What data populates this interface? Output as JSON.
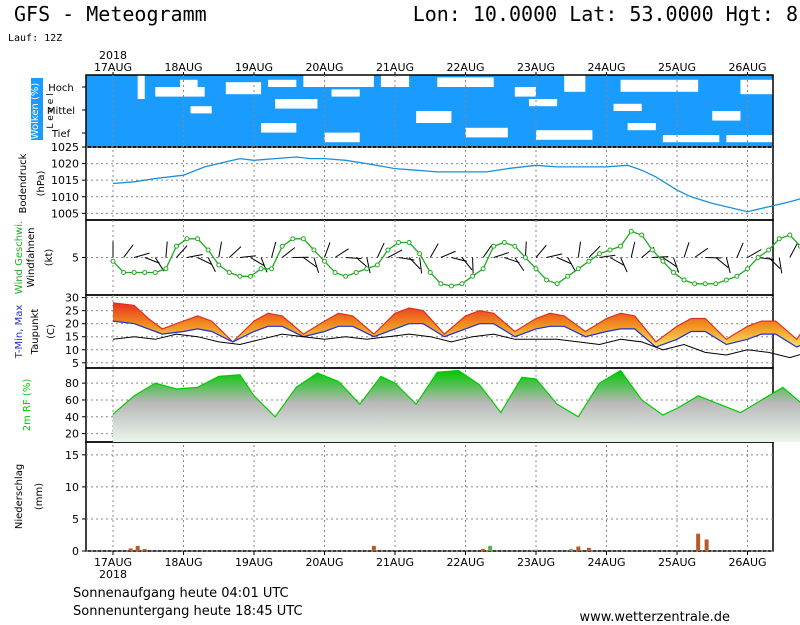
{
  "header": {
    "title": "GFS - Meteogramm",
    "coords": "Lon: 10.0000 Lat: 53.0000 Hgt: 8",
    "run": "Lauf: 12Z"
  },
  "footer": {
    "sunrise": "Sonnenaufgang heute 04:01 UTC",
    "sunset": "Sonnenuntergang heute 18:45 UTC",
    "site": "www.wetterzentrale.de"
  },
  "colors": {
    "cloud_bg": "#1a9cff",
    "pressure": "#1a8fdc",
    "wind": "#22aa22",
    "tmax": "#e03020",
    "tmin": "#2030d0",
    "rh": "#00cc00",
    "precip_rain": "#b85a28",
    "precip_other": "#6aa84f"
  },
  "chart_data": {
    "type": "line",
    "year": "2018",
    "dates": [
      "17AUG",
      "18AUG",
      "19AUG",
      "20AUG",
      "21AUG",
      "22AUG",
      "23AUG",
      "24AUG",
      "25AUG",
      "26AUG"
    ],
    "panels": [
      {
        "id": "clouds",
        "ylabel": "Wolken (%)",
        "ylabel2": "L e v e l",
        "levels": [
          "Hoch",
          "Mittel",
          "Tief"
        ],
        "note": "white patches = no cloud; blue = cloud cover"
      },
      {
        "id": "pressure",
        "ylabel": "Bodendruck",
        "ylabel2": "(hPa)",
        "yticks": [
          1005,
          1010,
          1015,
          1020,
          1025
        ],
        "ylim": [
          1003,
          1025
        ],
        "series": [
          {
            "name": "Bodendruck",
            "x": [
              0,
              0.3,
              0.6,
              1.0,
              1.3,
              1.6,
              1.8,
              2.0,
              2.3,
              2.6,
              2.8,
              3.0,
              3.3,
              3.6,
              4.0,
              4.3,
              4.6,
              5.0,
              5.3,
              5.6,
              6.0,
              6.3,
              6.6,
              7.0,
              7.3,
              7.5,
              7.7,
              8.0,
              8.2,
              8.5,
              8.8,
              9.0,
              9.3,
              9.6,
              9.85
            ],
            "y": [
              1014,
              1014.5,
              1015.5,
              1016.5,
              1019,
              1020.5,
              1021.5,
              1021,
              1021.5,
              1022,
              1021.5,
              1021.5,
              1021,
              1020,
              1018.5,
              1018,
              1017.5,
              1017.5,
              1017.5,
              1018.5,
              1019.5,
              1019,
              1019,
              1019,
              1019.5,
              1018,
              1016,
              1012,
              1010,
              1008,
              1006.5,
              1005.5,
              1007,
              1008.5,
              1010
            ]
          }
        ]
      },
      {
        "id": "wind",
        "ylabel": "Wind Geschwi.",
        "ylabel2": "Windfahnen",
        "ylabel3": "(kt)",
        "yticks": [
          5
        ],
        "ylim": [
          0,
          10
        ],
        "series": [
          {
            "name": "Wind",
            "x": [
              0,
              0.15,
              0.3,
              0.45,
              0.6,
              0.75,
              0.9,
              1.05,
              1.2,
              1.35,
              1.5,
              1.65,
              1.8,
              1.95,
              2.1,
              2.25,
              2.4,
              2.55,
              2.7,
              2.85,
              3.0,
              3.15,
              3.3,
              3.45,
              3.6,
              3.75,
              3.9,
              4.05,
              4.2,
              4.35,
              4.5,
              4.65,
              4.8,
              4.95,
              5.1,
              5.25,
              5.4,
              5.55,
              5.7,
              5.85,
              6.0,
              6.15,
              6.3,
              6.45,
              6.6,
              6.75,
              6.9,
              7.05,
              7.2,
              7.35,
              7.5,
              7.65,
              7.8,
              7.95,
              8.1,
              8.25,
              8.4,
              8.55,
              8.7,
              8.85,
              9.0,
              9.15,
              9.3,
              9.45,
              9.6,
              9.75,
              9.85
            ],
            "y": [
              4.5,
              3,
              3,
              3,
              3,
              3.5,
              6.5,
              7.5,
              7.5,
              6,
              4,
              3,
              2.5,
              2.5,
              3.5,
              3.5,
              6.5,
              7.5,
              7.5,
              6,
              4.5,
              3,
              2.5,
              3,
              3.5,
              4,
              6,
              7,
              7,
              5.5,
              3,
              1.5,
              1.2,
              1.5,
              2.5,
              3.5,
              6.5,
              7,
              6.5,
              5,
              3.5,
              2,
              1.5,
              2.5,
              3.5,
              4.5,
              5.5,
              6,
              6.5,
              8.5,
              8,
              6,
              4.5,
              3,
              2,
              1.5,
              1.5,
              1.5,
              2,
              2.5,
              3.5,
              5,
              6,
              7.5,
              8,
              6.5,
              4.5
            ]
          }
        ]
      },
      {
        "id": "temperature",
        "ylabel": "T-Min, Max",
        "ylabel2": "Taupunkt",
        "ylabel3": "(C)",
        "yticks": [
          5,
          10,
          15,
          20,
          25,
          30
        ],
        "ylim": [
          3,
          31
        ],
        "series": [
          {
            "name": "T-Max",
            "x": [
              0,
              0.3,
              0.5,
              0.7,
              1.0,
              1.2,
              1.4,
              1.7,
              2.0,
              2.2,
              2.4,
              2.7,
              3.0,
              3.2,
              3.4,
              3.7,
              4.0,
              4.2,
              4.4,
              4.7,
              5.0,
              5.2,
              5.4,
              5.7,
              6.0,
              6.2,
              6.4,
              6.7,
              7.0,
              7.2,
              7.4,
              7.7,
              8.0,
              8.2,
              8.4,
              8.7,
              9.0,
              9.2,
              9.4,
              9.7,
              9.85
            ],
            "y": [
              28,
              27,
              22,
              18,
              21,
              23,
              21,
              13,
              21,
              24,
              23,
              16,
              21,
              24,
              23,
              16,
              24,
              26,
              25,
              16,
              23,
              25,
              24,
              17,
              22,
              24,
              23,
              17,
              22,
              24,
              23,
              13,
              19,
              22,
              22,
              14,
              19,
              21,
              21,
              14,
              20
            ]
          },
          {
            "name": "T-Min",
            "x": [
              0,
              0.3,
              0.5,
              0.7,
              1.0,
              1.2,
              1.4,
              1.7,
              2.0,
              2.2,
              2.4,
              2.7,
              3.0,
              3.2,
              3.4,
              3.7,
              4.0,
              4.2,
              4.4,
              4.7,
              5.0,
              5.2,
              5.4,
              5.7,
              6.0,
              6.2,
              6.4,
              6.7,
              7.0,
              7.2,
              7.4,
              7.7,
              8.0,
              8.2,
              8.4,
              8.7,
              9.0,
              9.2,
              9.4,
              9.7,
              9.85
            ],
            "y": [
              21,
              20,
              18,
              16,
              17,
              18,
              17,
              13,
              17,
              19,
              19,
              15,
              17,
              19,
              19,
              15,
              18,
              20,
              20,
              15,
              18,
              20,
              20,
              15,
              18,
              19,
              19,
              15,
              17,
              18,
              18,
              11,
              14,
              17,
              17,
              12,
              14,
              16,
              16,
              11,
              13
            ]
          },
          {
            "name": "Taupunkt",
            "x": [
              0,
              0.3,
              0.6,
              0.9,
              1.2,
              1.5,
              1.8,
              2.1,
              2.4,
              2.7,
              3.0,
              3.3,
              3.6,
              3.9,
              4.2,
              4.5,
              4.8,
              5.1,
              5.4,
              5.7,
              6.0,
              6.3,
              6.6,
              6.9,
              7.2,
              7.5,
              7.8,
              8.1,
              8.4,
              8.7,
              9.0,
              9.3,
              9.6,
              9.85
            ],
            "y": [
              14,
              15,
              14,
              16,
              15,
              13,
              12,
              14,
              16,
              15,
              14,
              15,
              14,
              15,
              16,
              15,
              13,
              15,
              16,
              14,
              14,
              14,
              13,
              12,
              14,
              13,
              10,
              12,
              9,
              8,
              10,
              9,
              7,
              9
            ]
          }
        ]
      },
      {
        "id": "humidity",
        "ylabel": "2m RF (%)",
        "yticks": [
          20,
          40,
          60,
          80
        ],
        "ylim": [
          10,
          98
        ],
        "series": [
          {
            "name": "2m RF",
            "x": [
              0,
              0.3,
              0.6,
              0.9,
              1.2,
              1.5,
              1.8,
              2.0,
              2.3,
              2.6,
              2.9,
              3.2,
              3.5,
              3.8,
              4.0,
              4.3,
              4.6,
              4.9,
              5.2,
              5.5,
              5.8,
              6.0,
              6.3,
              6.6,
              6.9,
              7.2,
              7.5,
              7.8,
              8.0,
              8.3,
              8.6,
              8.9,
              9.2,
              9.5,
              9.85
            ],
            "y": [
              43,
              65,
              80,
              73,
              75,
              88,
              90,
              65,
              40,
              75,
              92,
              82,
              55,
              88,
              80,
              55,
              93,
              95,
              78,
              45,
              87,
              85,
              55,
              40,
              80,
              95,
              60,
              42,
              50,
              65,
              55,
              45,
              60,
              75,
              50
            ]
          }
        ]
      },
      {
        "id": "precip",
        "ylabel": "Niederschlag",
        "ylabel2": "(mm)",
        "yticks": [
          0,
          5,
          10,
          15
        ],
        "ylim": [
          0,
          17
        ],
        "bars": [
          {
            "x": 0.25,
            "y": 0.4,
            "kind": "rain"
          },
          {
            "x": 0.35,
            "y": 0.8,
            "kind": "rain"
          },
          {
            "x": 0.45,
            "y": 0.3,
            "kind": "rain"
          },
          {
            "x": 3.7,
            "y": 0.8,
            "kind": "rain"
          },
          {
            "x": 5.25,
            "y": 0.3,
            "kind": "rain"
          },
          {
            "x": 5.35,
            "y": 0.8,
            "kind": "other"
          },
          {
            "x": 6.0,
            "y": 0.2,
            "kind": "other"
          },
          {
            "x": 6.6,
            "y": 0.7,
            "kind": "rain"
          },
          {
            "x": 6.75,
            "y": 0.5,
            "kind": "rain"
          },
          {
            "x": 6.5,
            "y": 0.3,
            "kind": "other"
          },
          {
            "x": 8.3,
            "y": 2.7,
            "kind": "rain"
          },
          {
            "x": 8.42,
            "y": 1.8,
            "kind": "rain"
          }
        ]
      }
    ]
  }
}
